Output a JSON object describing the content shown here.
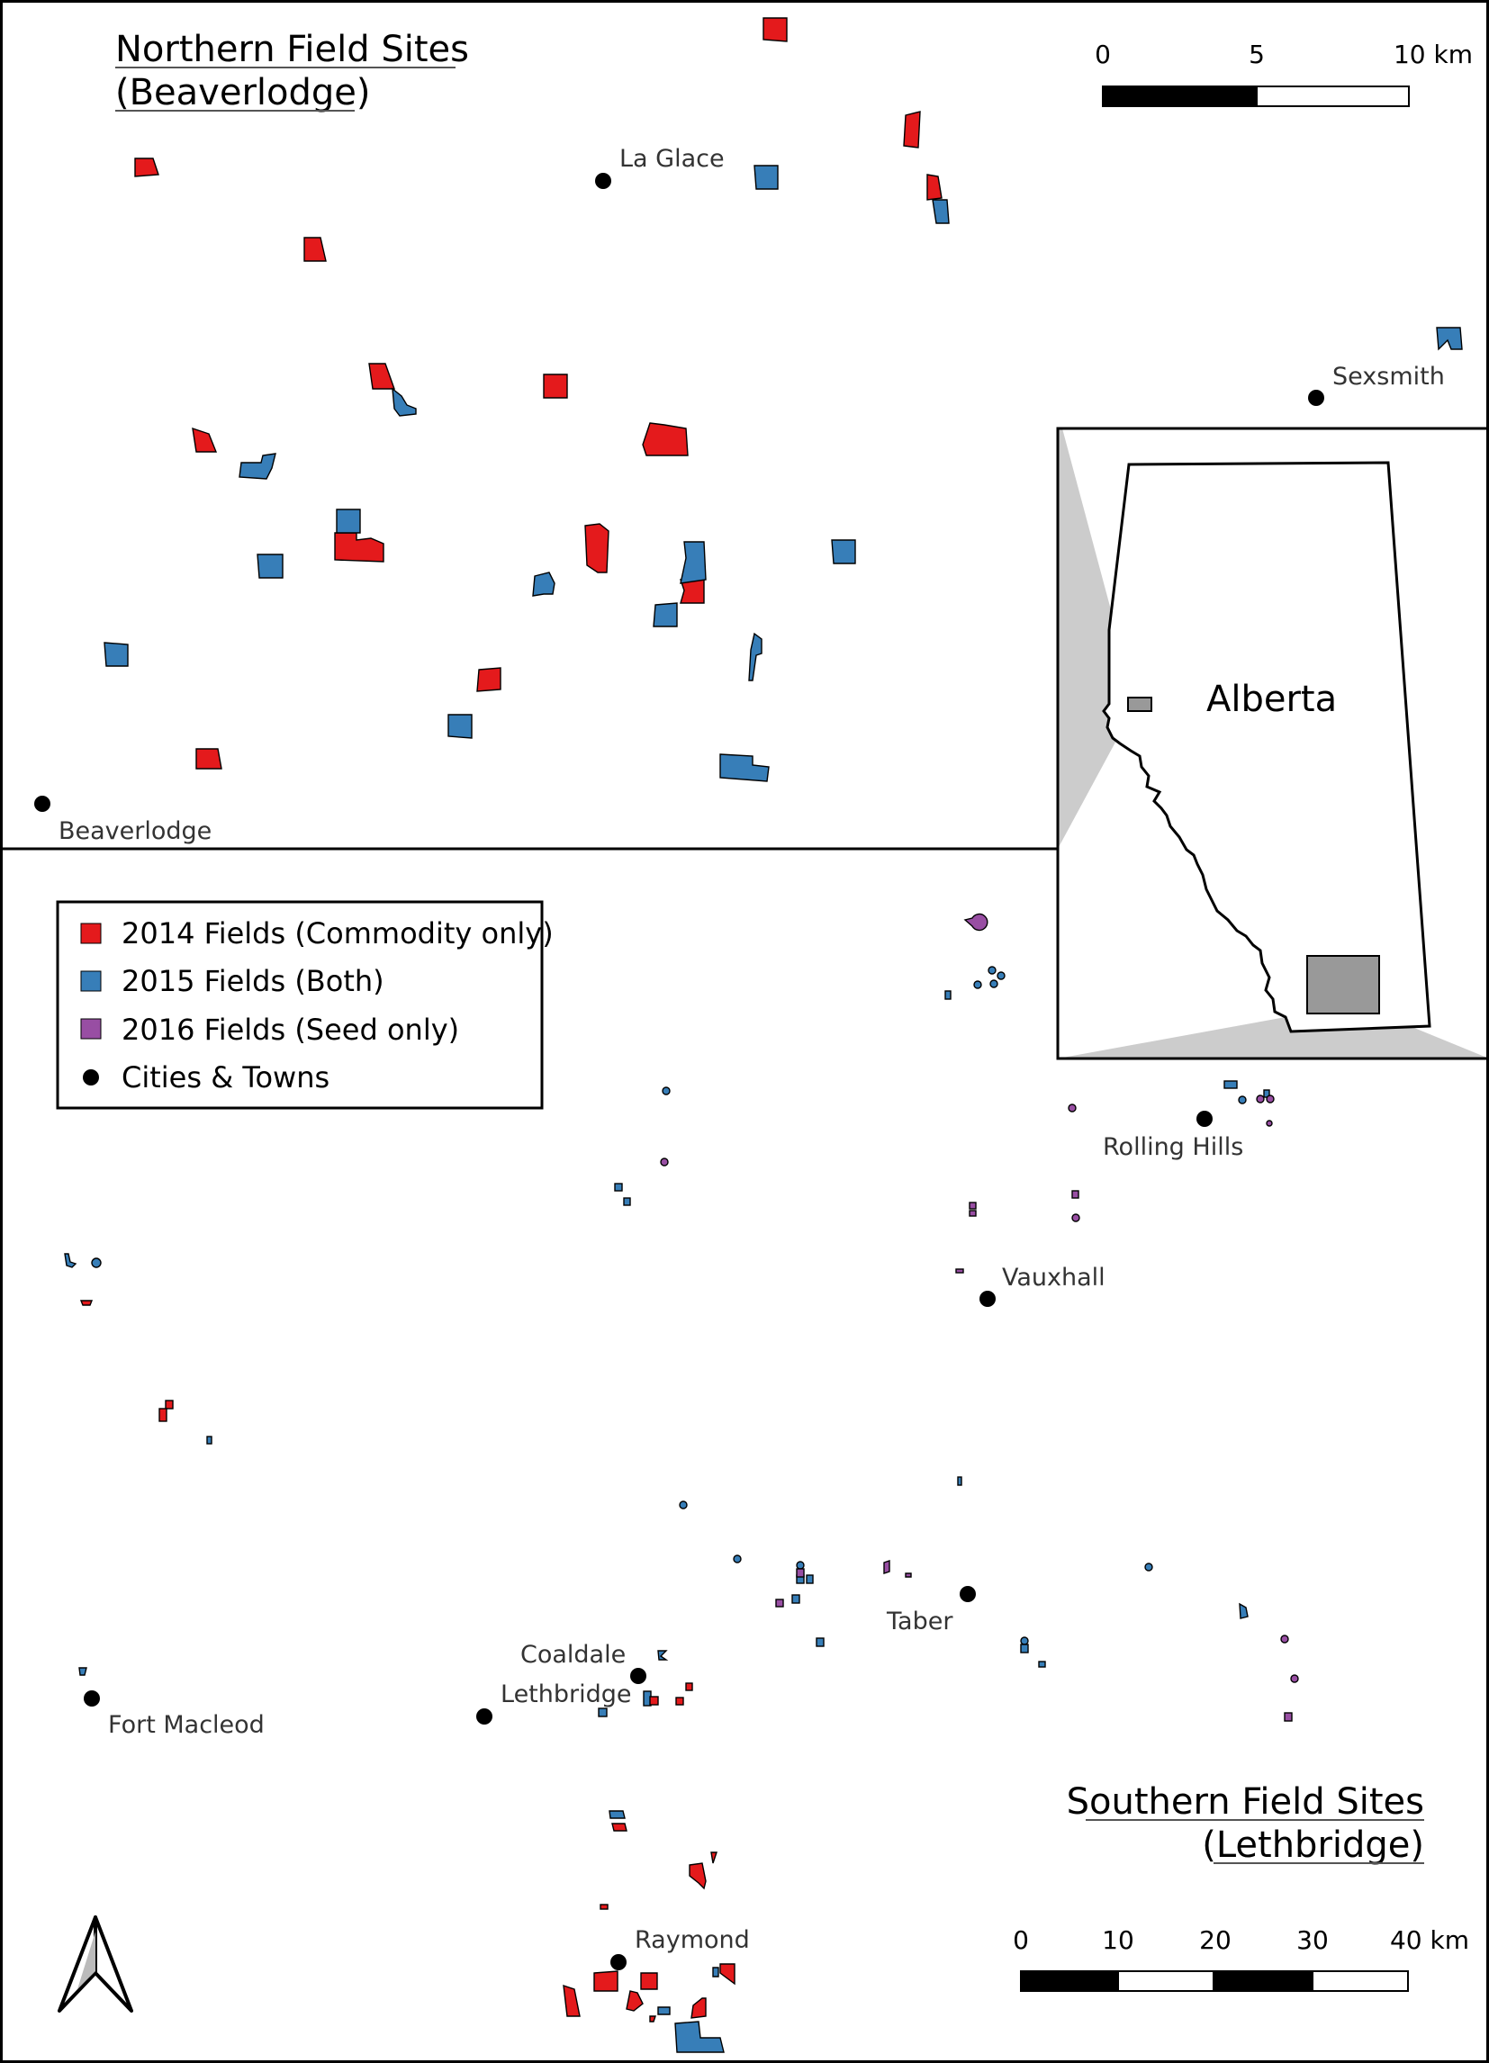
{
  "colors": {
    "fields_2014": "#e41a1c",
    "fields_2015": "#377eb8",
    "fields_2016": "#984ea3",
    "city": "#000000",
    "inset_box": "#999999",
    "inset_wedge": "#cccccc"
  },
  "north_panel": {
    "title_line1": "Northern Field Sites",
    "title_line2": "(Beaverlodge)",
    "towns": [
      "La Glace",
      "Sexsmith",
      "Beaverlodge"
    ],
    "scale_ticks": [
      "0",
      "5",
      "10 km"
    ]
  },
  "south_panel": {
    "title_line1": "Southern Field Sites",
    "title_line2": "(Lethbridge)",
    "towns": [
      "Rolling Hills",
      "Vauxhall",
      "Taber",
      "Coaldale",
      "Lethbridge",
      "Fort Macleod",
      "Raymond"
    ],
    "scale_ticks": [
      "0",
      "10",
      "20",
      "30",
      "40 km"
    ]
  },
  "legend": {
    "items": [
      {
        "label": "2014 Fields (Commodity only)",
        "color_key": "fields_2014"
      },
      {
        "label": "2015 Fields (Both)",
        "color_key": "fields_2015"
      },
      {
        "label": "2016 Fields (Seed only)",
        "color_key": "fields_2016"
      },
      {
        "label": "Cities & Towns",
        "color_key": "city"
      }
    ]
  },
  "inset": {
    "label": "Alberta"
  },
  "north_arrow_icon": "north-arrow-icon"
}
